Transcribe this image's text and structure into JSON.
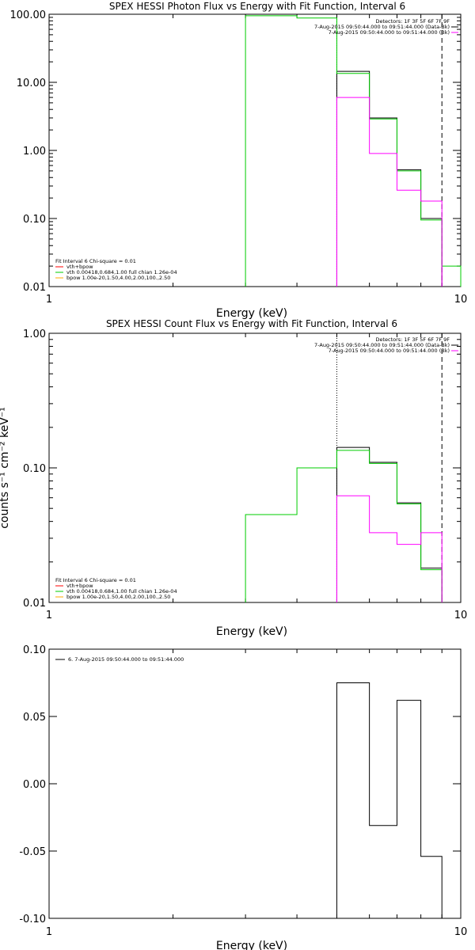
{
  "colors": {
    "axis": "#000000",
    "data_obs": "#000000",
    "model_total": "#ff0000",
    "vth": "#00cc00",
    "bpow": "#ffaa00",
    "background": "#ff00ff",
    "marker": "#000000"
  },
  "chart_data": [
    {
      "id": "photon",
      "type": "line",
      "title": "SPEX HESSI Photon Flux vs Energy with Fit Function, Interval 6",
      "xlabel": "Energy (keV)",
      "ylabel": "",
      "xscale": "log",
      "yscale": "log",
      "xlim": [
        1,
        10
      ],
      "ylim": [
        0.01,
        100
      ],
      "xticks": [
        "1",
        "10"
      ],
      "yticks": [
        "0.01",
        "0.10",
        "1.00",
        "10.00",
        "100.00"
      ],
      "legend_header": [
        "Detectors: 1F 3F 5F 6F 7F 9F",
        "7-Aug-2015 09:50:44.000 to 09:51:44.000 (Data-Bk)",
        "7-Aug-2015 09:50:44.000 to 09:51:44.000 (Bk)"
      ],
      "fit_info": [
        "Fit Interval  6   Chi-square = 0.01",
        "vth+bpow",
        "vth 0.00418,0.684,1.00  full chian 1.26e-04",
        "bpow 1.00e-20,1.50,4.00,2.00,100.,2.50"
      ],
      "edges": [
        3,
        4,
        5,
        6,
        7,
        8,
        9,
        10
      ],
      "series": [
        {
          "name": "Data-Bk",
          "color": "#000000",
          "values": [
            null,
            null,
            14.5,
            3.0,
            0.52,
            0.1,
            null
          ]
        },
        {
          "name": "vth",
          "color": "#00cc00",
          "values": [
            95,
            88,
            13.5,
            2.9,
            0.5,
            0.095,
            0.02
          ]
        },
        {
          "name": "Bk",
          "color": "#ff00ff",
          "values": [
            null,
            null,
            6.0,
            0.9,
            0.26,
            0.18,
            null
          ]
        }
      ],
      "vlines": [
        {
          "x": 5,
          "style": "dotted"
        },
        {
          "x": 9,
          "style": "dashed"
        }
      ]
    },
    {
      "id": "count",
      "type": "line",
      "title": "SPEX HESSI Count Flux vs Energy with Fit Function, Interval 6",
      "xlabel": "Energy (keV)",
      "ylabel": "counts s⁻¹ cm⁻² keV⁻¹",
      "xscale": "log",
      "yscale": "log",
      "xlim": [
        1,
        10
      ],
      "ylim": [
        0.01,
        1
      ],
      "xticks": [
        "1",
        "10"
      ],
      "yticks": [
        "0.01",
        "0.10",
        "1.00"
      ],
      "legend_header": [
        "Detectors: 1F 3F 5F 6F 7F 9F",
        "7-Aug-2015 09:50:44.000 to 09:51:44.000 (Data-Bk)",
        "7-Aug-2015 09:50:44.000 to 09:51:44.000 (Bk)"
      ],
      "fit_info": [
        "Fit Interval  6   Chi-square = 0.01",
        "vth+bpow",
        "vth 0.00418,0.684,1.00  full chian 1.26e-04",
        "bpow 1.00e-20,1.50,4.00,2.00,100.,2.50"
      ],
      "edges": [
        3,
        4,
        5,
        6,
        7,
        8,
        9
      ],
      "series": [
        {
          "name": "Data-Bk",
          "color": "#000000",
          "values": [
            null,
            null,
            0.142,
            0.11,
            0.055,
            0.018
          ]
        },
        {
          "name": "vth",
          "color": "#00cc00",
          "values": [
            0.045,
            0.1,
            0.135,
            0.108,
            0.054,
            0.0175
          ]
        },
        {
          "name": "Bk",
          "color": "#ff00ff",
          "values": [
            null,
            null,
            0.062,
            0.033,
            0.027,
            0.033
          ]
        }
      ],
      "vlines": [
        {
          "x": 5,
          "style": "dotted"
        },
        {
          "x": 9,
          "style": "dashed"
        }
      ]
    },
    {
      "id": "resid",
      "type": "line",
      "title": "",
      "xlabel": "Energy (keV)",
      "ylabel": "",
      "xscale": "log",
      "yscale": "linear",
      "xlim": [
        1,
        10
      ],
      "ylim": [
        -0.1,
        0.1
      ],
      "xticks": [
        "1",
        "10"
      ],
      "yticks": [
        "-0.10",
        "-0.05",
        "0.00",
        "0.05",
        "0.10"
      ],
      "legend_header": [],
      "fit_info": [],
      "legend_entry": "6.  7-Aug-2015 09:50:44.000 to 09:51:44.000",
      "edges": [
        5,
        6,
        7,
        8,
        9
      ],
      "series": [
        {
          "name": "",
          "color": "#000000",
          "values": [
            0.075,
            -0.031,
            0.062,
            -0.054
          ]
        }
      ],
      "vlines": []
    }
  ]
}
